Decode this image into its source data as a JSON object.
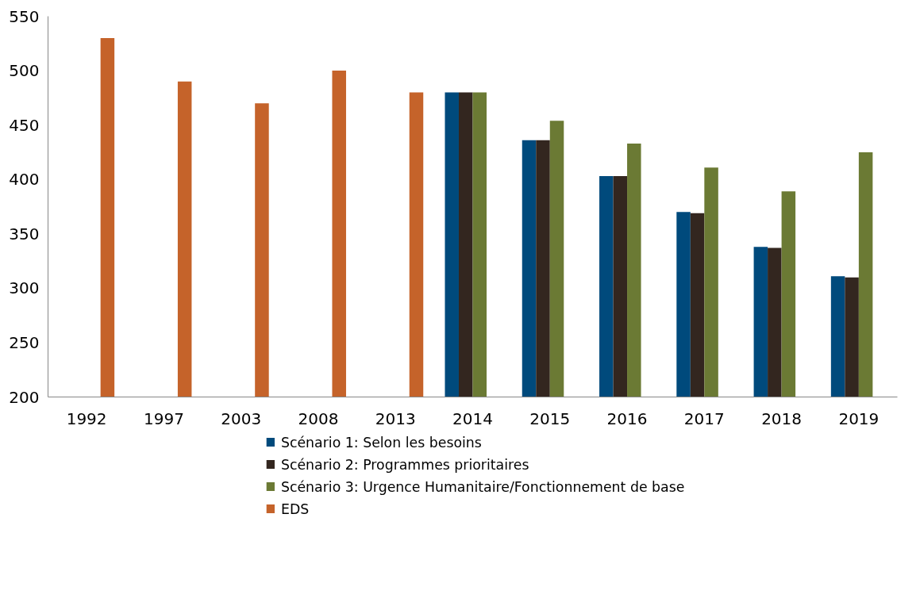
{
  "chart_data": {
    "type": "bar",
    "categories": [
      "1992",
      "1997",
      "2003",
      "2008",
      "2013",
      "2014",
      "2015",
      "2016",
      "2017",
      "2018",
      "2019"
    ],
    "series": [
      {
        "name": "Scénario 1: Selon les besoins",
        "color": "#004a7c",
        "values": [
          null,
          null,
          null,
          null,
          null,
          480,
          436,
          403,
          370,
          338,
          311
        ]
      },
      {
        "name": "Scénario 2: Programmes prioritaires",
        "color": "#33261f",
        "values": [
          null,
          null,
          null,
          null,
          null,
          480,
          436,
          403,
          369,
          337,
          310
        ]
      },
      {
        "name": "Scénario 3: Urgence Humanitaire/Fonctionnement de base",
        "color": "#6b7a34",
        "values": [
          null,
          null,
          null,
          null,
          null,
          480,
          454,
          433,
          411,
          389,
          425
        ]
      },
      {
        "name": "EDS",
        "color": "#c5632a",
        "values": [
          530,
          490,
          470,
          500,
          480,
          null,
          null,
          null,
          null,
          null,
          null
        ]
      }
    ],
    "ylim": [
      200,
      550
    ],
    "yticks": [
      200,
      250,
      300,
      350,
      400,
      450,
      500,
      550
    ],
    "grid": false,
    "legend": "bottom"
  }
}
